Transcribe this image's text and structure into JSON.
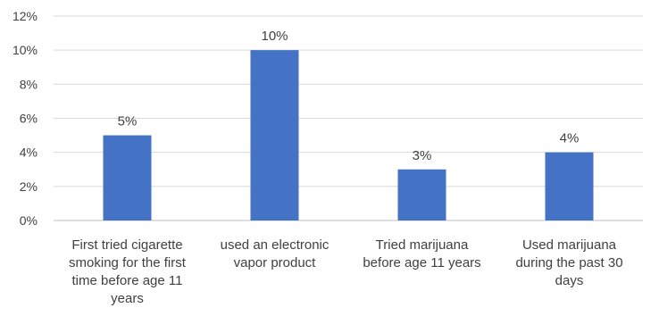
{
  "chart_data": {
    "type": "bar",
    "categories": [
      [
        "First tried cigarette",
        "smoking for the first",
        "time before age 11",
        "years"
      ],
      [
        "used an electronic",
        "vapor product"
      ],
      [
        "Tried marijuana",
        "before age 11 years"
      ],
      [
        "Used marijuana",
        "during the past 30",
        "days"
      ]
    ],
    "values": [
      5,
      10,
      3,
      4
    ],
    "value_labels": [
      "5%",
      "10%",
      "3%",
      "4%"
    ],
    "title": "",
    "xlabel": "",
    "ylabel": "",
    "ylim": [
      0,
      12
    ],
    "yticks": [
      0,
      2,
      4,
      6,
      8,
      10,
      12
    ],
    "ytick_labels": [
      "0%",
      "2%",
      "4%",
      "6%",
      "8%",
      "10%",
      "12%"
    ],
    "grid": true,
    "legend": "none",
    "colors": {
      "bar": "#4472C4",
      "grid": "#d9d9d9",
      "text": "#404040"
    }
  }
}
